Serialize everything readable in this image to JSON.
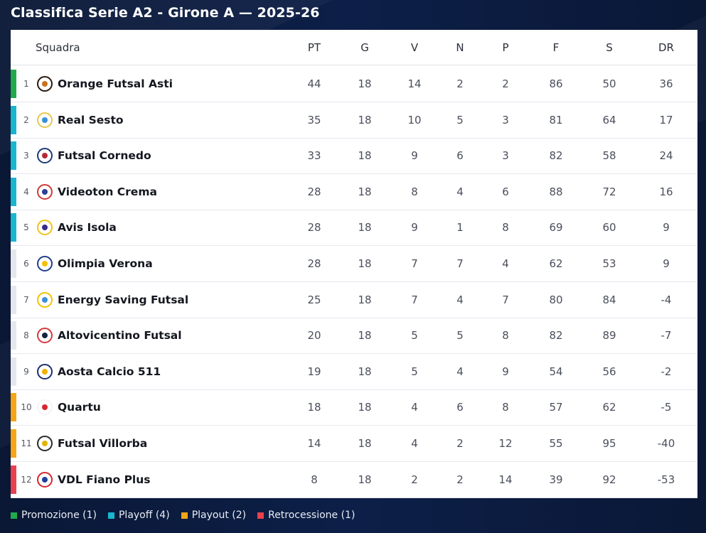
{
  "title": "Classifica Serie A2 - Girone A — 2025-26",
  "columns": {
    "team": "Squadra",
    "pt": "PT",
    "g": "G",
    "v": "V",
    "n": "N",
    "p": "P",
    "f": "F",
    "s": "S",
    "dr": "DR"
  },
  "colors": {
    "promozione": "#1faa4b",
    "playoff": "#19b6cf",
    "playout": "#f5a516",
    "retrocessione": "#e8414d",
    "none": "#e4e7ee"
  },
  "legend": [
    {
      "label": "Promozione (1)",
      "zone": "promozione"
    },
    {
      "label": "Playoff (4)",
      "zone": "playoff"
    },
    {
      "label": "Playout (2)",
      "zone": "playout"
    },
    {
      "label": "Retrocessione (1)",
      "zone": "retrocessione"
    }
  ],
  "rows": [
    {
      "pos": "1",
      "team": "Orange Futsal Asti",
      "pt": "44",
      "g": "18",
      "v": "14",
      "n": "2",
      "p": "2",
      "f": "86",
      "s": "50",
      "dr": "36",
      "zone": "promozione",
      "logo_icon": "orange-futsal-asti-crest-icon",
      "logo_colors": [
        "#c9711c",
        "#2a1a0e"
      ]
    },
    {
      "pos": "2",
      "team": "Real Sesto",
      "pt": "35",
      "g": "18",
      "v": "10",
      "n": "5",
      "p": "3",
      "f": "81",
      "s": "64",
      "dr": "17",
      "zone": "playoff",
      "logo_icon": "real-sesto-crest-icon",
      "logo_colors": [
        "#3a8fd6",
        "#e8c84a"
      ]
    },
    {
      "pos": "3",
      "team": "Futsal Cornedo",
      "pt": "33",
      "g": "18",
      "v": "9",
      "n": "6",
      "p": "3",
      "f": "82",
      "s": "58",
      "dr": "24",
      "zone": "playoff",
      "logo_icon": "futsal-cornedo-crest-icon",
      "logo_colors": [
        "#b4283a",
        "#1f3a7a"
      ]
    },
    {
      "pos": "4",
      "team": "Videoton Crema",
      "pt": "28",
      "g": "18",
      "v": "8",
      "n": "4",
      "p": "6",
      "f": "88",
      "s": "72",
      "dr": "16",
      "zone": "playoff",
      "logo_icon": "videoton-crema-crest-icon",
      "logo_colors": [
        "#2b3f93",
        "#d23a3a"
      ]
    },
    {
      "pos": "5",
      "team": "Avis Isola",
      "pt": "28",
      "g": "18",
      "v": "9",
      "n": "1",
      "p": "8",
      "f": "69",
      "s": "60",
      "dr": "9",
      "zone": "playoff",
      "logo_icon": "avis-isola-crest-icon",
      "logo_colors": [
        "#3b2a8c",
        "#f0c419"
      ]
    },
    {
      "pos": "6",
      "team": "Olimpia Verona",
      "pt": "28",
      "g": "18",
      "v": "7",
      "n": "7",
      "p": "4",
      "f": "62",
      "s": "53",
      "dr": "9",
      "zone": "none",
      "logo_icon": "olimpia-verona-crest-icon",
      "logo_colors": [
        "#f2c200",
        "#1f3f8a"
      ]
    },
    {
      "pos": "7",
      "team": "Energy Saving Futsal",
      "pt": "25",
      "g": "18",
      "v": "7",
      "n": "4",
      "p": "7",
      "f": "80",
      "s": "84",
      "dr": "-4",
      "zone": "none",
      "logo_icon": "energy-saving-futsal-crest-icon",
      "logo_colors": [
        "#3d8fd9",
        "#f2c200"
      ]
    },
    {
      "pos": "8",
      "team": "Altovicentino Futsal",
      "pt": "20",
      "g": "18",
      "v": "5",
      "n": "5",
      "p": "8",
      "f": "82",
      "s": "89",
      "dr": "-7",
      "zone": "none",
      "logo_icon": "altovicentino-futsal-crest-icon",
      "logo_colors": [
        "#12263f",
        "#d43a3a"
      ]
    },
    {
      "pos": "9",
      "team": "Aosta Calcio 511",
      "pt": "19",
      "g": "18",
      "v": "5",
      "n": "4",
      "p": "9",
      "f": "54",
      "s": "56",
      "dr": "-2",
      "zone": "none",
      "logo_icon": "aosta-calcio-511-crest-icon",
      "logo_colors": [
        "#f2b100",
        "#1c2f6e"
      ]
    },
    {
      "pos": "10",
      "team": "Quartu",
      "pt": "18",
      "g": "18",
      "v": "4",
      "n": "6",
      "p": "8",
      "f": "57",
      "s": "62",
      "dr": "-5",
      "zone": "playout",
      "logo_icon": "quartu-crest-icon",
      "logo_colors": [
        "#d7262e",
        "#f4f4f4"
      ]
    },
    {
      "pos": "11",
      "team": "Futsal Villorba",
      "pt": "14",
      "g": "18",
      "v": "4",
      "n": "2",
      "p": "12",
      "f": "55",
      "s": "95",
      "dr": "-40",
      "zone": "playout",
      "logo_icon": "futsal-villorba-crest-icon",
      "logo_colors": [
        "#e0b400",
        "#2a2a2a"
      ]
    },
    {
      "pos": "12",
      "team": "VDL Fiano Plus",
      "pt": "8",
      "g": "18",
      "v": "2",
      "n": "2",
      "p": "14",
      "f": "39",
      "s": "92",
      "dr": "-53",
      "zone": "retrocessione",
      "logo_icon": "vdl-fiano-plus-crest-icon",
      "logo_colors": [
        "#1f3f9a",
        "#d9262e"
      ]
    }
  ]
}
